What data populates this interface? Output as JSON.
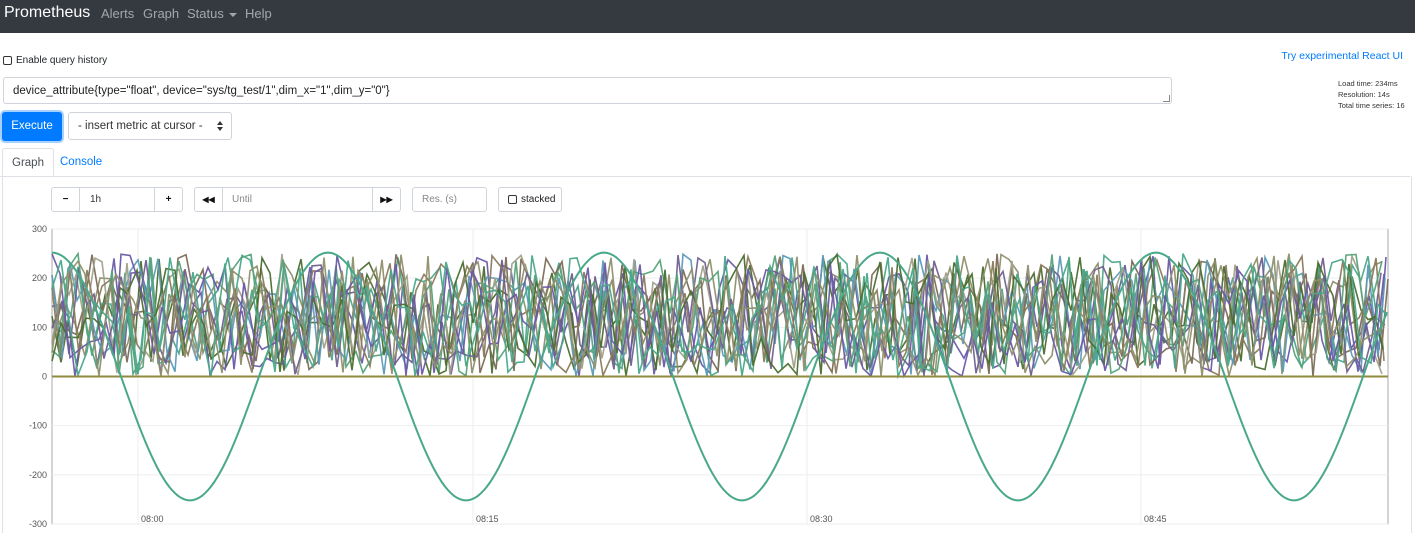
{
  "nav": {
    "brand": "Prometheus",
    "links": [
      {
        "label": "Alerts"
      },
      {
        "label": "Graph"
      },
      {
        "label": "Status",
        "dropdown": true
      },
      {
        "label": "Help"
      }
    ]
  },
  "query_history": {
    "label": "Enable query history",
    "checked": false
  },
  "react_link": "Try experimental React UI",
  "stats": {
    "load_time": "Load time: 234ms",
    "resolution": "Resolution: 14s",
    "total_series": "Total time series: 16"
  },
  "expression": "device_attribute{type=\"float\", device=\"sys/tg_test/1\",dim_x=\"1\",dim_y=\"0\"}",
  "execute_label": "Execute",
  "metric_select": "- insert metric at cursor -",
  "tabs": [
    {
      "label": "Graph",
      "active": true
    },
    {
      "label": "Console",
      "active": false
    }
  ],
  "controls": {
    "minus": "−",
    "range": "1h",
    "plus": "+",
    "back": "◀◀",
    "until_placeholder": "Until",
    "forward": "▶▶",
    "res_placeholder": "Res. (s)",
    "stacked_label": "stacked"
  },
  "colors": {
    "navbar": "#343a40",
    "primary": "#007bff",
    "series": [
      "#4b6e2f",
      "#6a5aa8",
      "#8f8f6b",
      "#4aa88a",
      "#7a6c56",
      "#5b9bb8",
      "#a0a08a",
      "#6f5f8f",
      "#8a7a5c",
      "#55a37a"
    ]
  },
  "chart_data": {
    "type": "line",
    "ylim": [
      -300,
      300
    ],
    "yticks": [
      "300",
      "200",
      "100",
      "0",
      "-100",
      "-200",
      "-300"
    ],
    "xticks": [
      "08:00",
      "08:15",
      "08:30",
      "08:45"
    ],
    "series_count": 16,
    "notes_visible": {
      "sine_series": {
        "min": -255,
        "max": 250,
        "periods_visible": 5
      },
      "flat_series": {
        "value": 0
      },
      "noise_series_range": [
        0,
        250
      ]
    }
  }
}
